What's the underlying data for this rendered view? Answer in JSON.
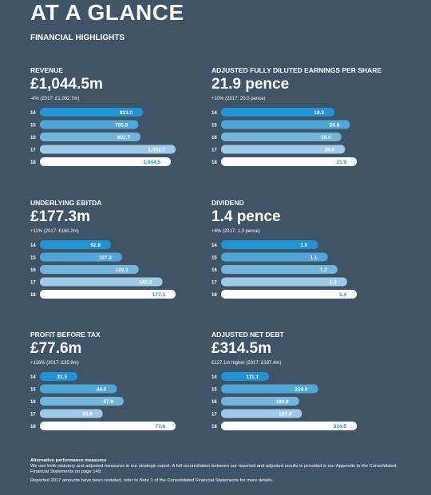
{
  "page": {
    "title": "AT A GLANCE",
    "subtitle": "FINANCIAL HIGHLIGHTS"
  },
  "colors": {
    "background": "#3f5467",
    "latest_bar": "#ffffff",
    "bar_shades": [
      "#1f93d3",
      "#4ea7d8",
      "#73b6dc",
      "#9ecae8",
      "#ffffff"
    ],
    "latest_label": "#1f93d3"
  },
  "chart_data": [
    {
      "type": "bar",
      "title": "REVENUE",
      "headline": "£1,044.5m",
      "note": "-4% (2017: £1,082.7m)",
      "categories": [
        "14",
        "15",
        "16",
        "17",
        "18"
      ],
      "values": [
        823.0,
        785.8,
        802.7,
        1082.7,
        1044.5
      ],
      "labels": [
        "823.0",
        "785.8",
        "802.7",
        "1,082.7",
        "1,044.5"
      ],
      "xlim": [
        0,
        1082.7
      ]
    },
    {
      "type": "bar",
      "title": "ADJUSTED FULLY DILUTED EARNINGS PER SHARE",
      "headline": "21.9 pence",
      "note": "+10% (2017: 20.0 pence)",
      "categories": [
        "14",
        "15",
        "16",
        "17",
        "18"
      ],
      "values": [
        18.3,
        20.8,
        19.4,
        20.0,
        21.9
      ],
      "labels": [
        "18.3",
        "20.8",
        "19.4",
        "20.0",
        "21.9"
      ],
      "xlim": [
        0,
        21.9
      ]
    },
    {
      "type": "bar",
      "title": "UNDERLYING EBITDA",
      "headline": "£177.3m",
      "note": "+11% (2017: £160.2m)",
      "categories": [
        "14",
        "15",
        "16",
        "17",
        "18"
      ],
      "values": [
        92.8,
        107.3,
        129.1,
        160.2,
        177.3
      ],
      "labels": [
        "92.8",
        "107.3",
        "129.1",
        "160.2",
        "177.3"
      ],
      "xlim": [
        0,
        177.3
      ]
    },
    {
      "type": "bar",
      "title": "DIVIDEND",
      "headline": "1.4 pence",
      "note": "+8% (2017: 1.3 pence)",
      "categories": [
        "14",
        "15",
        "16",
        "17",
        "18"
      ],
      "values": [
        1.0,
        1.1,
        1.2,
        1.3,
        1.4
      ],
      "labels": [
        "1.0",
        "1.1",
        "1.2",
        "1.3",
        "1.4"
      ],
      "xlim": [
        0,
        1.4
      ]
    },
    {
      "type": "bar",
      "title": "PROFIT BEFORE TAX",
      "headline": "£77.6m",
      "note": "+116% (2017: £35.9m)",
      "categories": [
        "14",
        "15",
        "16",
        "17",
        "18"
      ],
      "values": [
        21.5,
        44.0,
        47.9,
        35.9,
        77.6
      ],
      "labels": [
        "21.5",
        "44.0",
        "47.9",
        "35.9",
        "77.6"
      ],
      "xlim": [
        0,
        77.6
      ]
    },
    {
      "type": "bar",
      "title": "ADJUSTED NET DEBT",
      "headline": "£314.5m",
      "note": "£127.1m higher (2017: £187.4m)",
      "categories": [
        "14",
        "15",
        "16",
        "17",
        "18"
      ],
      "values": [
        111.1,
        224.9,
        180.8,
        187.4,
        314.5
      ],
      "labels": [
        "111.1",
        "224.9",
        "180.8",
        "187.4",
        "314.5"
      ],
      "xlim": [
        0,
        314.5
      ]
    }
  ],
  "footer": {
    "heading": "Alternative performance measures",
    "body": "We use both statutory and adjusted measures in our strategic report. A full reconciliation between our reported and adjusted results is provided in our Appendix to the Consolidated Financial Statements on page 149.",
    "restated": "Reported 2017 amounts have been restated, refer to Note 1 of the Consolidated Financial Statements for more details."
  }
}
